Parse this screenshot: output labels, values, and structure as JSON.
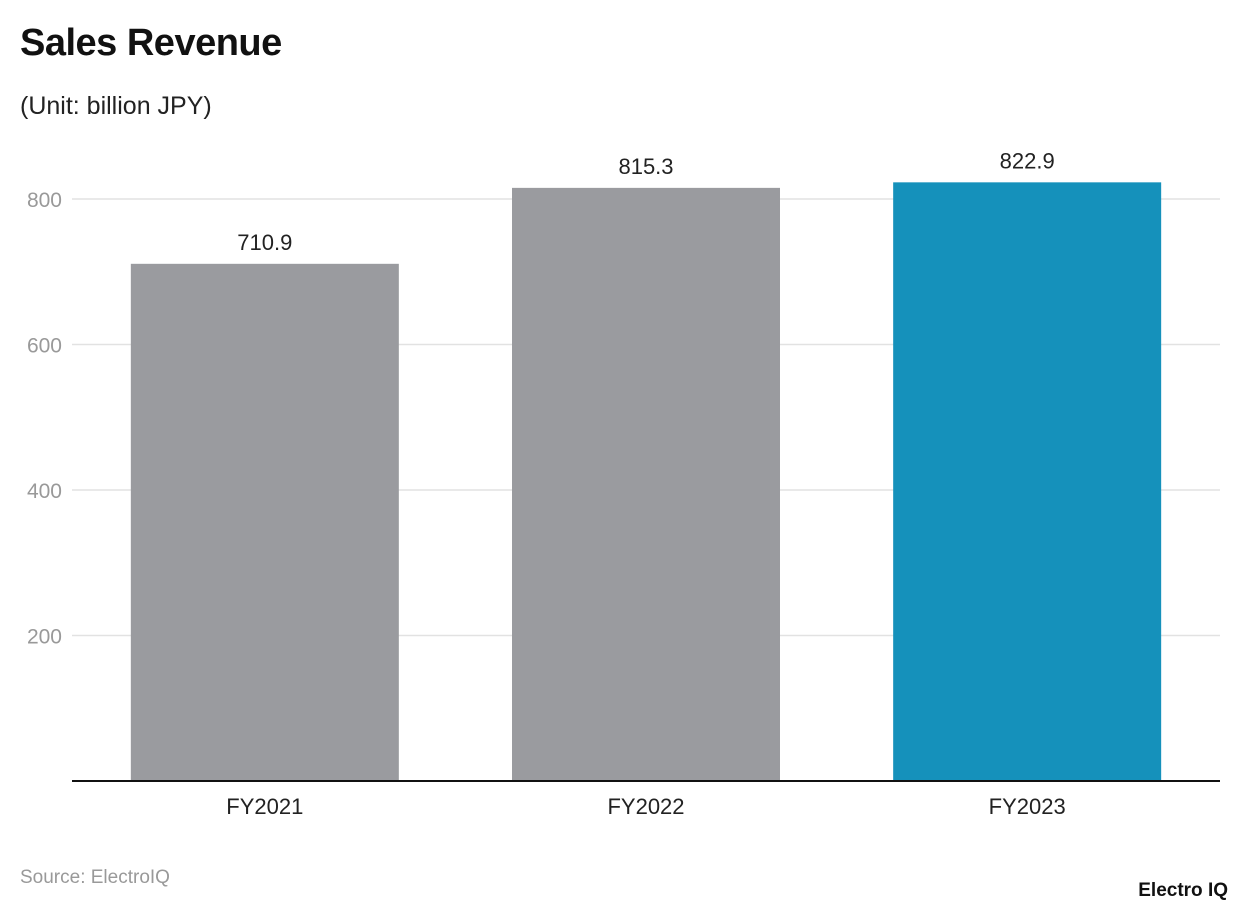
{
  "chart_data": {
    "type": "bar",
    "title": "Sales Revenue",
    "subtitle": "(Unit: billion JPY)",
    "categories": [
      "FY2021",
      "FY2022",
      "FY2023"
    ],
    "values": [
      710.9,
      815.3,
      822.9
    ],
    "value_labels": [
      "710.9",
      "815.3",
      "822.9"
    ],
    "colors": [
      "#9a9b9f",
      "#9a9b9f",
      "#1591bb"
    ],
    "yticks": [
      200,
      400,
      600,
      800
    ],
    "ylim": [
      0,
      800
    ],
    "xlabel": "",
    "ylabel": "",
    "grid": true,
    "source": "Source: ElectroIQ",
    "logo": "Electro IQ"
  }
}
